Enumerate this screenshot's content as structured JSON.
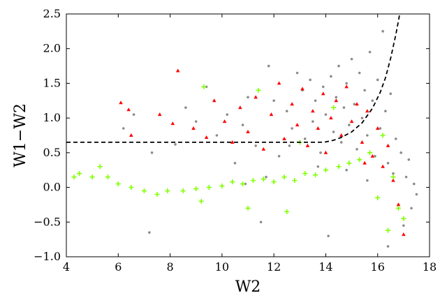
{
  "chart_data": {
    "type": "scatter",
    "title": "",
    "xlabel": "W2",
    "ylabel": "W1−W2",
    "xlim": [
      4,
      18
    ],
    "ylim": [
      -1.0,
      2.5
    ],
    "x_ticks": [
      4,
      6,
      8,
      10,
      12,
      14,
      16,
      18
    ],
    "x_tick_labels": [
      "4",
      "6",
      "8",
      "10",
      "12",
      "14",
      "16",
      "18"
    ],
    "y_ticks": [
      -1.0,
      -0.5,
      0.0,
      0.5,
      1.0,
      1.5,
      2.0,
      2.5
    ],
    "y_tick_labels": [
      "−1.0",
      "−0.5",
      "0.0",
      "0.5",
      "1.0",
      "1.5",
      "2.0",
      "2.5"
    ],
    "grid": false,
    "legend": "none",
    "series": [
      {
        "marker": "dot",
        "color": "#8c8c8c",
        "points": [
          [
            6.6,
            1.05
          ],
          [
            6.2,
            0.85
          ],
          [
            7.3,
            0.5
          ],
          [
            7.2,
            -0.65
          ],
          [
            8.2,
            0.62
          ],
          [
            8.6,
            1.15
          ],
          [
            9.0,
            0.95
          ],
          [
            9.4,
            1.45
          ],
          [
            9.8,
            0.75
          ],
          [
            10.2,
            1.05
          ],
          [
            10.5,
            0.35
          ],
          [
            10.8,
            0.9
          ],
          [
            11.0,
            1.3
          ],
          [
            11.3,
            0.6
          ],
          [
            11.5,
            -0.5
          ],
          [
            11.8,
            1.75
          ],
          [
            12.0,
            1.25
          ],
          [
            12.2,
            0.45
          ],
          [
            12.5,
            1.1
          ],
          [
            12.7,
            0.85
          ],
          [
            12.9,
            1.65
          ],
          [
            13.1,
            1.4
          ],
          [
            13.2,
            0.7
          ],
          [
            13.4,
            1.55
          ],
          [
            13.5,
            0.95
          ],
          [
            13.6,
            1.25
          ],
          [
            13.8,
            0.5
          ],
          [
            13.9,
            1.45
          ],
          [
            14.0,
            1.05
          ],
          [
            14.1,
            -0.7
          ],
          [
            14.2,
            1.6
          ],
          [
            14.3,
            0.8
          ],
          [
            14.4,
            1.3
          ],
          [
            14.5,
            1.75
          ],
          [
            14.6,
            0.65
          ],
          [
            14.7,
            1.15
          ],
          [
            14.8,
            1.5
          ],
          [
            14.9,
            0.9
          ],
          [
            15.0,
            1.85
          ],
          [
            15.1,
            1.2
          ],
          [
            15.2,
            0.55
          ],
          [
            15.3,
            1.65
          ],
          [
            15.4,
            1.0
          ],
          [
            15.5,
            1.4
          ],
          [
            15.6,
            0.75
          ],
          [
            15.7,
            1.95
          ],
          [
            15.8,
            1.25
          ],
          [
            15.9,
            0.45
          ],
          [
            16.0,
            1.55
          ],
          [
            16.1,
            0.85
          ],
          [
            16.2,
            2.25
          ],
          [
            16.3,
            1.1
          ],
          [
            16.4,
            0.35
          ],
          [
            16.5,
            1.35
          ],
          [
            16.6,
            0.2
          ],
          [
            16.7,
            0.7
          ],
          [
            16.8,
            -0.25
          ],
          [
            16.9,
            0.5
          ],
          [
            17.0,
            -0.55
          ],
          [
            17.1,
            0.15
          ],
          [
            17.2,
            0.4
          ],
          [
            17.3,
            -0.3
          ],
          [
            17.4,
            0.05
          ],
          [
            17.5,
            -0.1
          ],
          [
            16.4,
            -0.85
          ],
          [
            15.6,
            0.1
          ],
          [
            14.8,
            0.25
          ],
          [
            13.7,
            0.3
          ],
          [
            12.6,
            0.6
          ],
          [
            11.7,
            0.15
          ],
          [
            10.9,
            0.05
          ]
        ]
      },
      {
        "marker": "triangle",
        "color": "#ff0000",
        "points": [
          [
            6.1,
            1.22
          ],
          [
            6.4,
            1.12
          ],
          [
            6.5,
            0.75
          ],
          [
            7.6,
            1.05
          ],
          [
            8.1,
            0.92
          ],
          [
            8.3,
            1.68
          ],
          [
            8.9,
            0.85
          ],
          [
            9.4,
            0.72
          ],
          [
            9.7,
            1.25
          ],
          [
            10.1,
            0.95
          ],
          [
            10.4,
            0.65
          ],
          [
            10.7,
            1.15
          ],
          [
            11.0,
            0.8
          ],
          [
            11.3,
            1.3
          ],
          [
            11.6,
            0.55
          ],
          [
            11.9,
            1.05
          ],
          [
            12.2,
            1.5
          ],
          [
            12.4,
            0.7
          ],
          [
            12.7,
            1.2
          ],
          [
            12.9,
            0.9
          ],
          [
            13.1,
            1.42
          ],
          [
            13.3,
            0.6
          ],
          [
            13.5,
            1.1
          ],
          [
            13.7,
            0.85
          ],
          [
            13.9,
            1.35
          ],
          [
            14.0,
            0.5
          ],
          [
            14.2,
            1.0
          ],
          [
            14.4,
            1.25
          ],
          [
            14.6,
            0.75
          ],
          [
            14.8,
            1.45
          ],
          [
            15.0,
            0.95
          ],
          [
            15.2,
            1.2
          ],
          [
            15.4,
            0.65
          ],
          [
            15.6,
            1.1
          ],
          [
            15.8,
            0.45
          ],
          [
            16.0,
            0.85
          ],
          [
            16.2,
            0.3
          ],
          [
            16.4,
            0.6
          ],
          [
            16.6,
            0.1
          ],
          [
            16.8,
            -0.25
          ],
          [
            17.0,
            -0.68
          ],
          [
            15.5,
            0.35
          ]
        ]
      },
      {
        "marker": "plus",
        "color": "#80ff00",
        "points": [
          [
            4.3,
            0.15
          ],
          [
            4.5,
            0.2
          ],
          [
            5.0,
            0.15
          ],
          [
            5.3,
            0.3
          ],
          [
            5.6,
            0.15
          ],
          [
            6.0,
            0.05
          ],
          [
            6.5,
            0.0
          ],
          [
            7.0,
            -0.05
          ],
          [
            7.5,
            -0.1
          ],
          [
            7.9,
            -0.05
          ],
          [
            8.5,
            -0.05
          ],
          [
            9.0,
            -0.02
          ],
          [
            9.3,
            1.45
          ],
          [
            9.5,
            0.0
          ],
          [
            10.0,
            0.02
          ],
          [
            10.4,
            0.08
          ],
          [
            10.8,
            0.05
          ],
          [
            11.2,
            0.1
          ],
          [
            11.4,
            1.4
          ],
          [
            11.6,
            0.12
          ],
          [
            12.0,
            0.08
          ],
          [
            12.4,
            0.15
          ],
          [
            12.8,
            0.1
          ],
          [
            13.0,
            0.65
          ],
          [
            13.2,
            0.2
          ],
          [
            13.6,
            0.18
          ],
          [
            14.0,
            0.25
          ],
          [
            14.3,
            1.15
          ],
          [
            14.5,
            0.3
          ],
          [
            14.9,
            0.35
          ],
          [
            15.3,
            0.4
          ],
          [
            15.7,
            0.5
          ],
          [
            16.0,
            -0.15
          ],
          [
            16.2,
            0.75
          ],
          [
            16.4,
            -0.62
          ],
          [
            16.6,
            0.15
          ],
          [
            16.8,
            -0.3
          ],
          [
            17.0,
            -0.45
          ],
          [
            12.5,
            -0.35
          ],
          [
            11.0,
            -0.3
          ],
          [
            9.2,
            -0.2
          ]
        ]
      }
    ],
    "curve": {
      "style": "dashed",
      "color": "#000000",
      "points": [
        [
          4.0,
          0.65
        ],
        [
          13.8,
          0.65
        ],
        [
          14.0,
          0.655
        ],
        [
          14.3,
          0.68
        ],
        [
          14.6,
          0.72
        ],
        [
          15.0,
          0.8
        ],
        [
          15.4,
          0.93
        ],
        [
          15.8,
          1.14
        ],
        [
          16.1,
          1.37
        ],
        [
          16.3,
          1.58
        ],
        [
          16.5,
          1.86
        ],
        [
          16.7,
          2.2
        ],
        [
          16.85,
          2.5
        ]
      ]
    }
  }
}
